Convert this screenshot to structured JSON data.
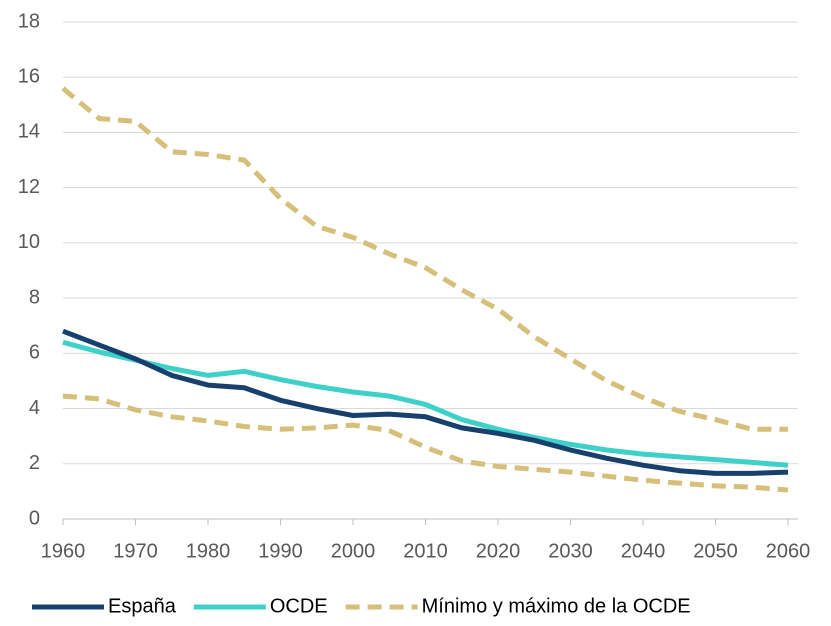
{
  "chart_data": {
    "type": "line",
    "x": [
      1960,
      1965,
      1970,
      1975,
      1980,
      1985,
      1990,
      1995,
      2000,
      2005,
      2010,
      2015,
      2020,
      2025,
      2030,
      2035,
      2040,
      2045,
      2050,
      2055,
      2060
    ],
    "series": [
      {
        "name": "España",
        "color": "#17406d",
        "values": [
          6.8,
          6.3,
          5.8,
          5.2,
          4.85,
          4.75,
          4.3,
          4.0,
          3.75,
          3.8,
          3.7,
          3.3,
          3.1,
          2.85,
          2.5,
          2.2,
          1.95,
          1.75,
          1.65,
          1.65,
          1.7
        ]
      },
      {
        "name": "OCDE",
        "color": "#3fd0c9",
        "values": [
          6.4,
          6.05,
          5.75,
          5.45,
          5.2,
          5.35,
          5.05,
          4.8,
          4.6,
          4.45,
          4.15,
          3.6,
          3.25,
          2.95,
          2.7,
          2.5,
          2.35,
          2.25,
          2.15,
          2.05,
          1.95
        ]
      },
      {
        "name": "Mínimo y máximo de la OCDE",
        "color": "#d6bf78",
        "dashed": true,
        "values_max": [
          15.6,
          14.5,
          14.4,
          13.3,
          13.2,
          13.0,
          11.6,
          10.6,
          10.2,
          9.6,
          9.1,
          8.3,
          7.6,
          6.6,
          5.8,
          5.0,
          4.4,
          3.9,
          3.6,
          3.25,
          3.25
        ],
        "values_min": [
          4.45,
          4.35,
          3.95,
          3.7,
          3.55,
          3.35,
          3.25,
          3.3,
          3.4,
          3.2,
          2.6,
          2.1,
          1.9,
          1.8,
          1.7,
          1.55,
          1.4,
          1.3,
          1.2,
          1.15,
          1.05
        ]
      }
    ],
    "xlim": [
      1960,
      2060
    ],
    "xticks": [
      1960,
      1970,
      1980,
      1990,
      2000,
      2010,
      2020,
      2030,
      2040,
      2050,
      2060
    ],
    "ylim": [
      0,
      18
    ],
    "yticks": [
      0,
      2,
      4,
      6,
      8,
      10,
      12,
      14,
      16,
      18
    ],
    "grid": true
  }
}
